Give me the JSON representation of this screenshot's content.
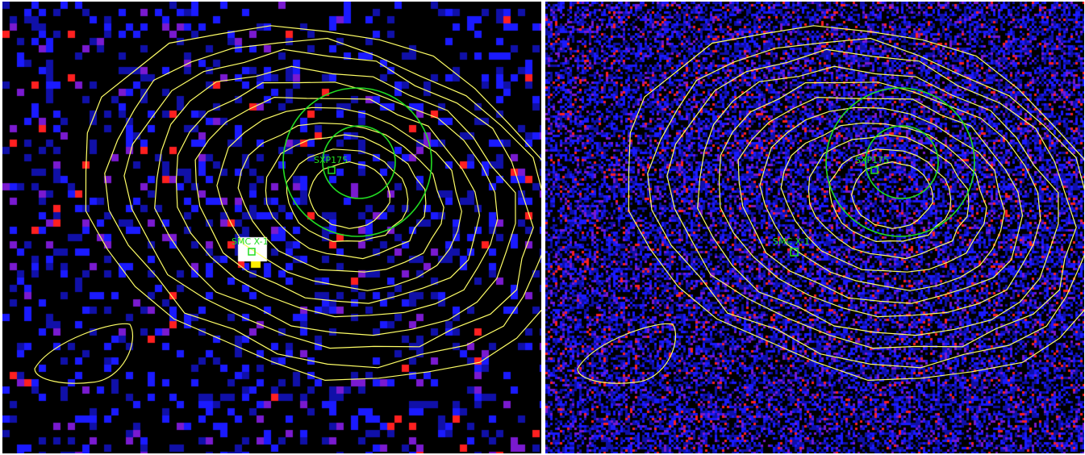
{
  "panels": [
    {
      "id": "left",
      "pixelation": "coarse",
      "sources": [
        {
          "label": "SXP175"
        },
        {
          "label": "SMC X-1"
        }
      ]
    },
    {
      "id": "right",
      "pixelation": "fine",
      "sources": [
        {
          "label": "SXP175"
        },
        {
          "label": "SMC X-1"
        }
      ]
    }
  ],
  "colors": {
    "contour": "#ffff66",
    "region": "#22dd22",
    "background": "#000000",
    "noise_low": "#1a1aff",
    "noise_high": "#ff2020",
    "bright_source": "#ffffff"
  },
  "contour_levels": 11,
  "region_circles": 2,
  "icons": [
    "source-marker-square"
  ]
}
